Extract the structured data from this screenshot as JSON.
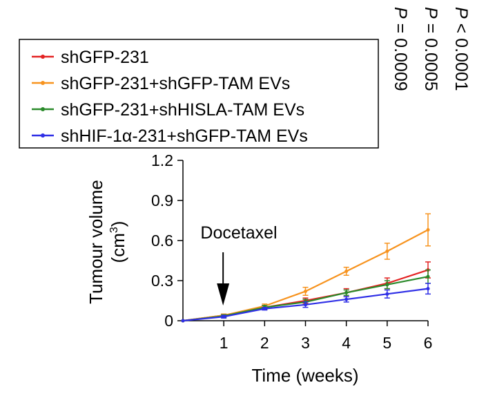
{
  "chart_data": {
    "type": "line",
    "x": [
      0,
      1,
      2,
      3,
      4,
      5,
      6
    ],
    "xticks": [
      "1",
      "2",
      "3",
      "4",
      "5",
      "6"
    ],
    "xtick_values": [
      1,
      2,
      3,
      4,
      5,
      6
    ],
    "yticks": [
      "0",
      "0.3",
      "0.6",
      "0.9",
      "1.2"
    ],
    "ytick_values": [
      0,
      0.3,
      0.6,
      0.9,
      1.2
    ],
    "xlim": [
      0,
      6
    ],
    "ylim": [
      0,
      1.2
    ],
    "xlabel": "Time (weeks)",
    "ylabel_line1": "Tumour volume",
    "ylabel_line2": "(cm",
    "ylabel_sup": "3",
    "ylabel_close": ")",
    "grid": false,
    "legend_position": "top-left",
    "annotation": {
      "text": "Docetaxel",
      "x": 1
    },
    "p_values": [
      {
        "label": "P",
        "value": "< 0.0001"
      },
      {
        "label": "P",
        "value": "= 0.0005"
      },
      {
        "label": "P",
        "value": "= 0.0009"
      }
    ],
    "series": [
      {
        "name": "shGFP-231",
        "color": "#e32222",
        "values": [
          0,
          0.04,
          0.1,
          0.15,
          0.21,
          0.28,
          0.38
        ],
        "errors": [
          0,
          0.01,
          0.015,
          0.02,
          0.03,
          0.04,
          0.06
        ]
      },
      {
        "name": "shGFP-231+shGFP-TAM EVs",
        "color": "#f7931e",
        "values": [
          0,
          0.04,
          0.11,
          0.22,
          0.37,
          0.52,
          0.68
        ],
        "errors": [
          0,
          0.01,
          0.015,
          0.03,
          0.03,
          0.06,
          0.12
        ]
      },
      {
        "name": "shGFP-231+shHISLA-TAM EVs",
        "color": "#2a8a2a",
        "values": [
          0,
          0.035,
          0.1,
          0.14,
          0.21,
          0.27,
          0.33
        ],
        "errors": [
          0,
          0.01,
          0.015,
          0.02,
          0.02,
          0.03,
          0.05
        ]
      },
      {
        "name": "shHIF-1α-231+shGFP-TAM EVs",
        "color": "#2f2fe6",
        "values": [
          0,
          0.03,
          0.09,
          0.12,
          0.16,
          0.2,
          0.24
        ],
        "errors": [
          0,
          0.01,
          0.01,
          0.02,
          0.02,
          0.03,
          0.04
        ]
      }
    ]
  }
}
